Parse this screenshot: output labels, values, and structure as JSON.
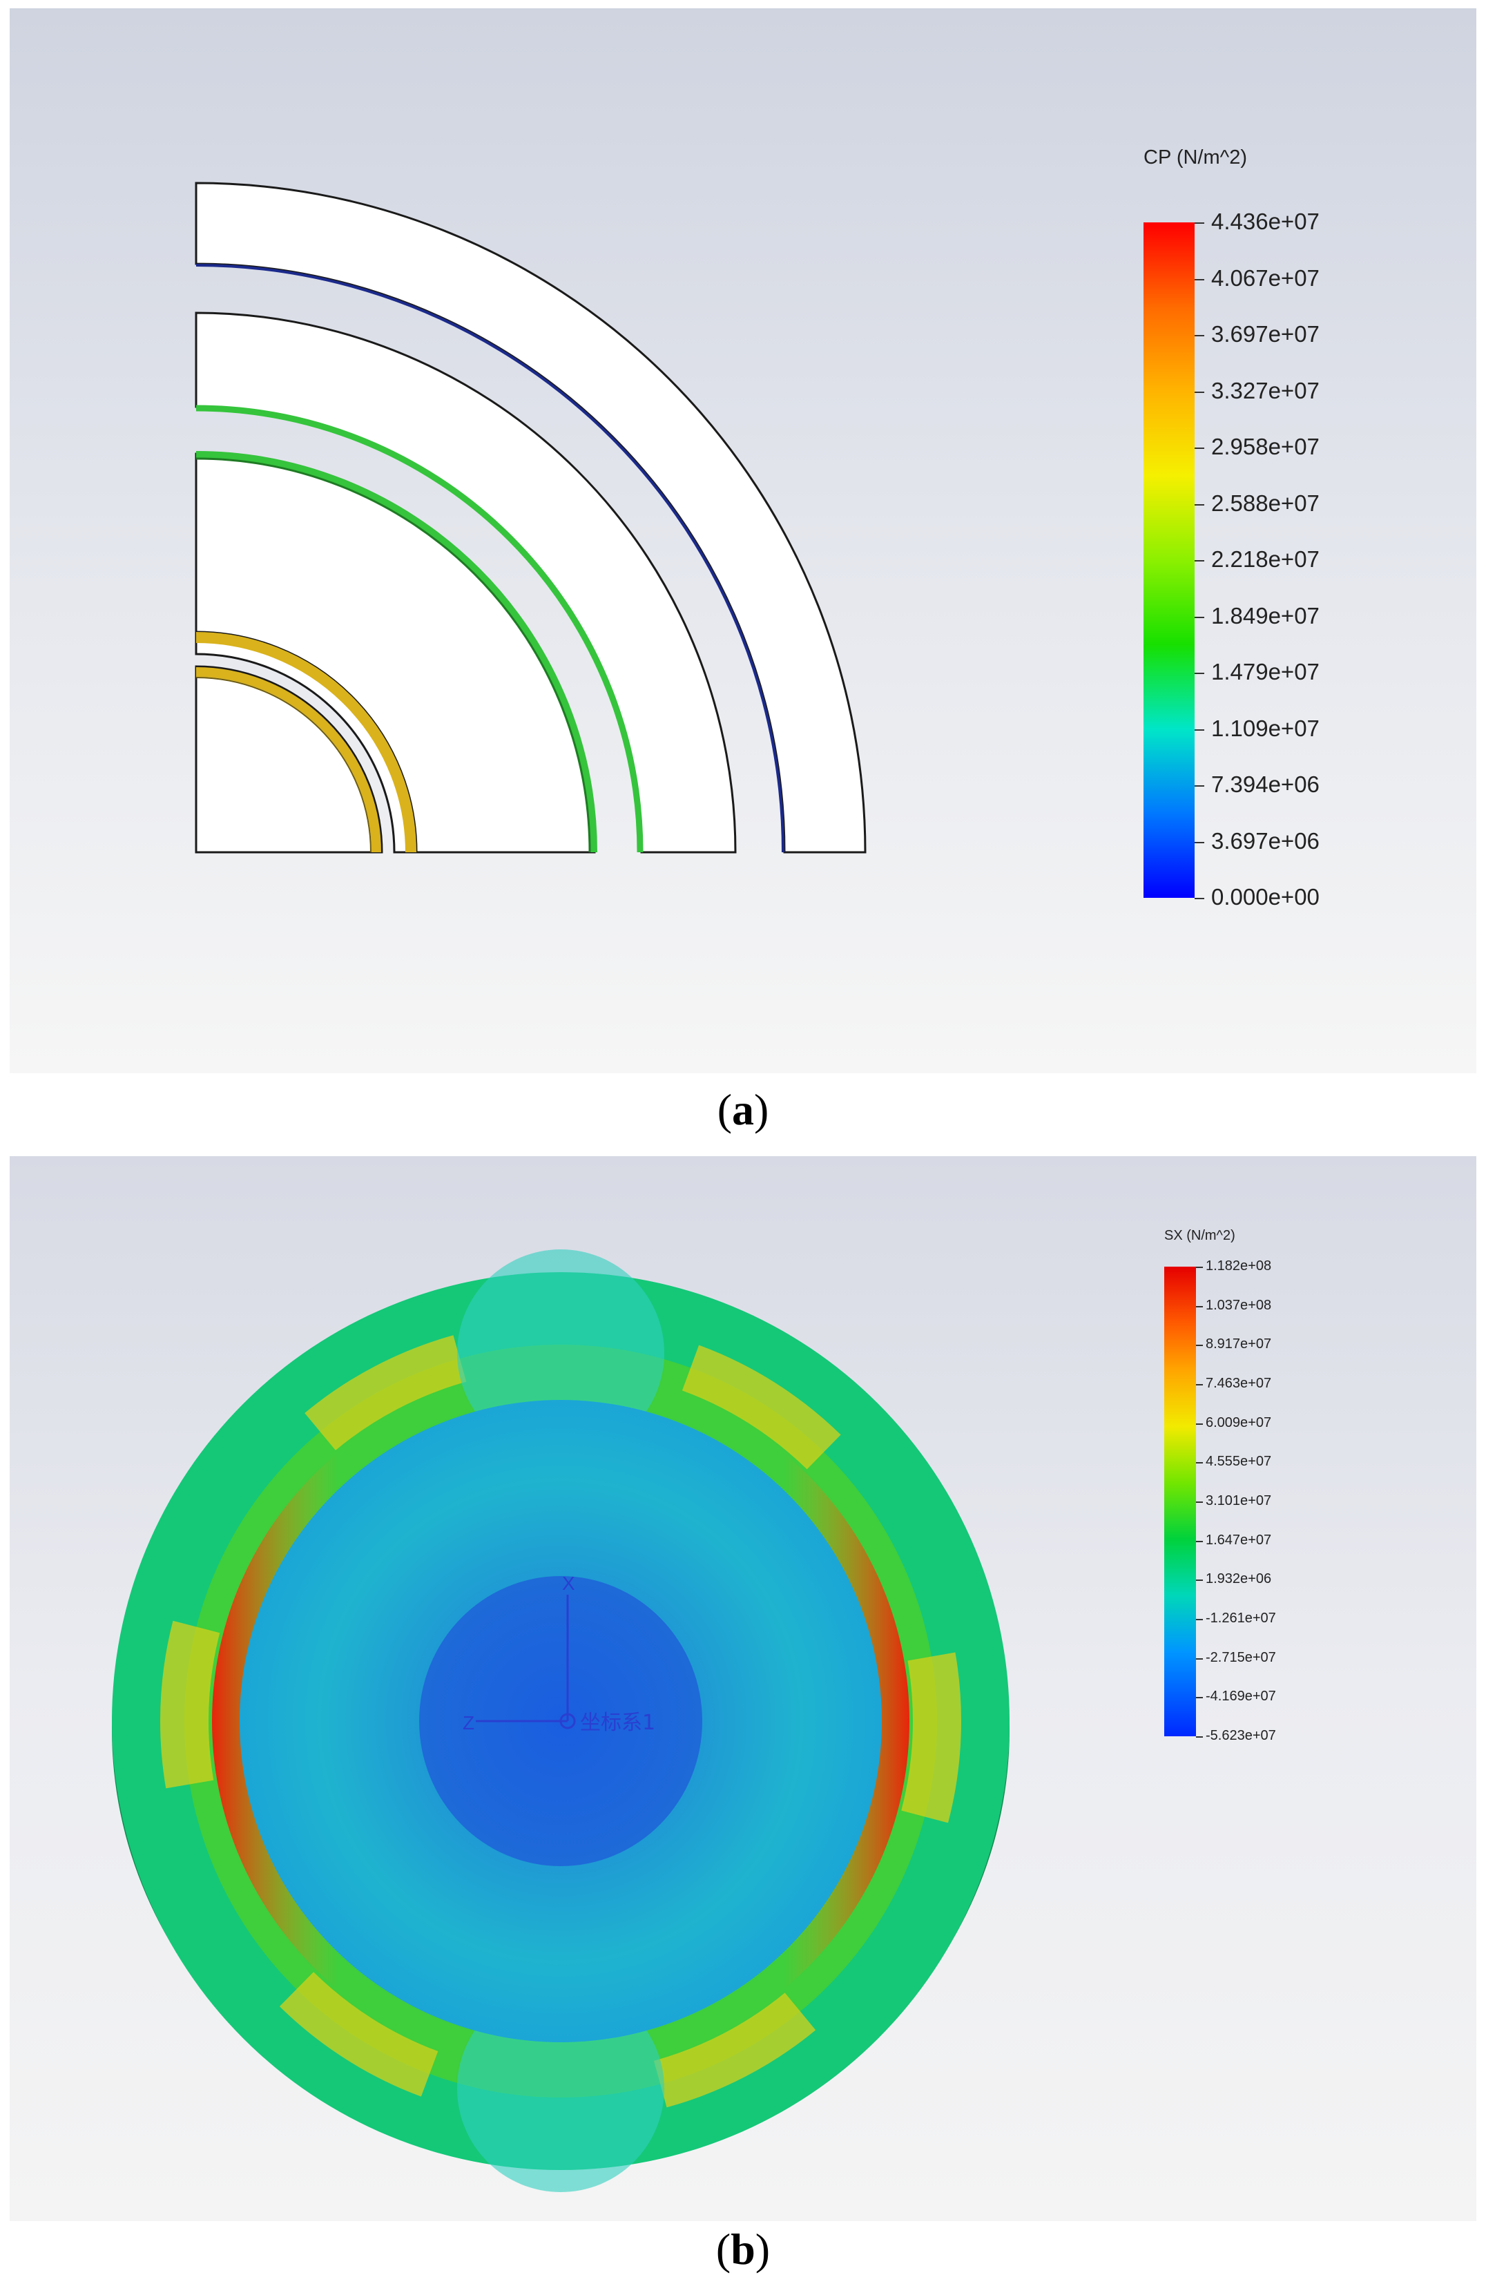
{
  "panel_a": {
    "caption_open": "(",
    "caption_letter": "a",
    "caption_close": ")",
    "legend": {
      "title": "CP (N/m^2)",
      "ticks": [
        "4.436e+07",
        "4.067e+07",
        "3.697e+07",
        "3.327e+07",
        "2.958e+07",
        "2.588e+07",
        "2.218e+07",
        "1.849e+07",
        "1.479e+07",
        "1.109e+07",
        "7.394e+06",
        "3.697e+06",
        "0.000e+00"
      ]
    }
  },
  "panel_b": {
    "caption_open": "(",
    "caption_letter": "b",
    "caption_close": ")",
    "legend": {
      "title": "SX (N/m^2)",
      "ticks": [
        "1.182e+08",
        "1.037e+08",
        "8.917e+07",
        "7.463e+07",
        "6.009e+07",
        "4.555e+07",
        "3.101e+07",
        "1.647e+07",
        "1.932e+06",
        "-1.261e+07",
        "-2.715e+07",
        "-4.169e+07",
        "-5.623e+07"
      ]
    },
    "triad": {
      "x_label": "X",
      "z_label": "Z",
      "cs_label": "坐标系1"
    }
  },
  "colors": {
    "pressure_yellow": "#d9b21c",
    "pressure_green": "#35c43c",
    "outer_ring": "#14c878",
    "inner_disk": "#1ba6d6",
    "core": "#1a56d8",
    "peak_red": "#e8240a"
  }
}
